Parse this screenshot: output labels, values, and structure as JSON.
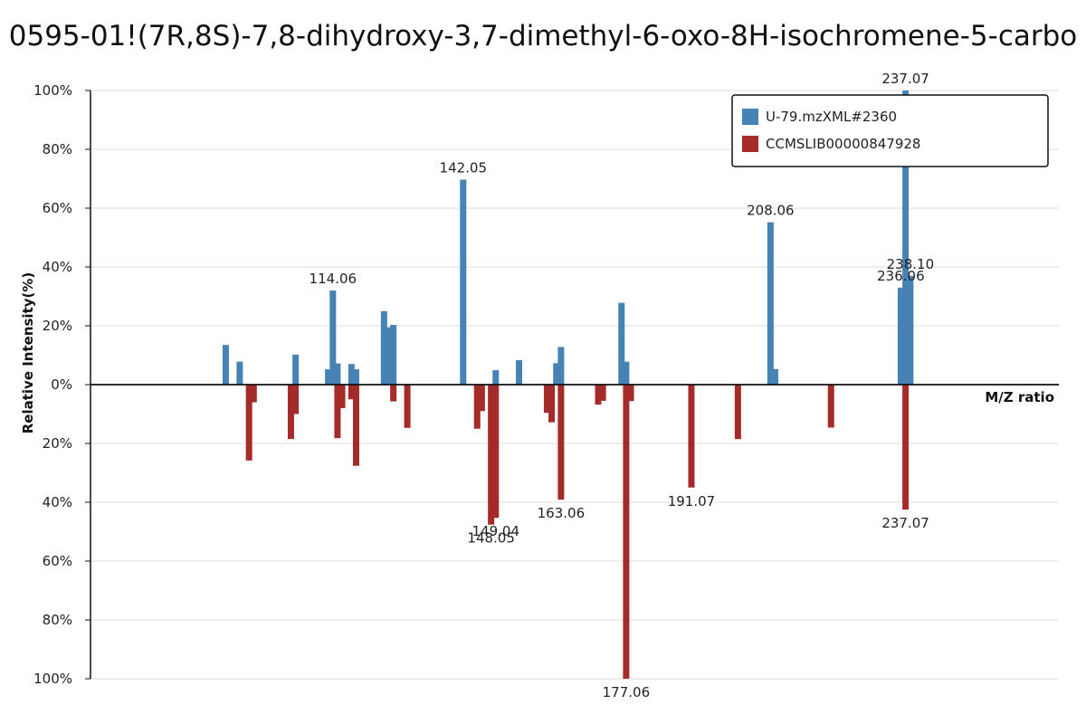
{
  "chart_data": {
    "type": "bar",
    "title": "0595-01!(7R,8S)-7,8-dihydroxy-3,7-dimethyl-6-oxo-8H-isochromene-5-carbo",
    "xlabel": "M/Z ratio",
    "ylabel": "Relative Intensity(%)",
    "legend_position": "top-right",
    "grid": true,
    "colors": {
      "top": "#4682b4",
      "bottom": "#a52a2a"
    },
    "yticks_top": [
      "100%",
      "80%",
      "60%",
      "40%",
      "20%",
      "0%"
    ],
    "yticks_bottom": [
      "20%",
      "40%",
      "60%",
      "80%",
      "100%"
    ],
    "xlim": [
      62,
      270
    ],
    "ylim": [
      -100,
      100
    ],
    "series": [
      {
        "name": "U-79.mzXML#2360",
        "direction": "up",
        "color": "#4682b4",
        "peaks": [
          {
            "mz": 91.05,
            "intensity": 13.5
          },
          {
            "mz": 94.05,
            "intensity": 7.8
          },
          {
            "mz": 106.06,
            "intensity": 10.2
          },
          {
            "mz": 113.05,
            "intensity": 5.2
          },
          {
            "mz": 114.06,
            "intensity": 32.0,
            "label": "114.06"
          },
          {
            "mz": 115.05,
            "intensity": 7.2
          },
          {
            "mz": 118.05,
            "intensity": 7.0
          },
          {
            "mz": 119.05,
            "intensity": 5.2
          },
          {
            "mz": 125.05,
            "intensity": 25.0
          },
          {
            "mz": 126.05,
            "intensity": 19.5
          },
          {
            "mz": 127.05,
            "intensity": 20.3
          },
          {
            "mz": 142.05,
            "intensity": 69.7,
            "label": "142.05"
          },
          {
            "mz": 149.04,
            "intensity": 4.9
          },
          {
            "mz": 154.05,
            "intensity": 8.3
          },
          {
            "mz": 162.06,
            "intensity": 7.3
          },
          {
            "mz": 163.06,
            "intensity": 12.8
          },
          {
            "mz": 176.06,
            "intensity": 27.8
          },
          {
            "mz": 177.06,
            "intensity": 7.8
          },
          {
            "mz": 208.06,
            "intensity": 55.2,
            "label": "208.06"
          },
          {
            "mz": 209.06,
            "intensity": 5.3
          },
          {
            "mz": 236.06,
            "intensity": 33.0,
            "label": "236.06"
          },
          {
            "mz": 237.07,
            "intensity": 100.0,
            "label": "237.07"
          },
          {
            "mz": 238.1,
            "intensity": 37.0,
            "label": "238.10"
          }
        ]
      },
      {
        "name": "CCMSLIB00000847928",
        "direction": "down",
        "color": "#a52a2a",
        "peaks": [
          {
            "mz": 96.05,
            "intensity": 25.8
          },
          {
            "mz": 97.05,
            "intensity": 6.0
          },
          {
            "mz": 105.05,
            "intensity": 18.5
          },
          {
            "mz": 106.05,
            "intensity": 10.0
          },
          {
            "mz": 115.05,
            "intensity": 18.2
          },
          {
            "mz": 116.05,
            "intensity": 8.0
          },
          {
            "mz": 118.05,
            "intensity": 5.0
          },
          {
            "mz": 119.05,
            "intensity": 27.6
          },
          {
            "mz": 127.05,
            "intensity": 5.7
          },
          {
            "mz": 130.05,
            "intensity": 14.7
          },
          {
            "mz": 145.05,
            "intensity": 15.0
          },
          {
            "mz": 146.05,
            "intensity": 9.0
          },
          {
            "mz": 148.05,
            "intensity": 47.6,
            "label": "148.05"
          },
          {
            "mz": 149.04,
            "intensity": 45.3,
            "label": "149.04"
          },
          {
            "mz": 160.06,
            "intensity": 9.6
          },
          {
            "mz": 161.06,
            "intensity": 12.8
          },
          {
            "mz": 163.06,
            "intensity": 39.1,
            "label": "163.06"
          },
          {
            "mz": 171.05,
            "intensity": 6.8
          },
          {
            "mz": 172.05,
            "intensity": 5.5
          },
          {
            "mz": 177.06,
            "intensity": 100.0,
            "label": "177.06"
          },
          {
            "mz": 178.06,
            "intensity": 5.6
          },
          {
            "mz": 191.07,
            "intensity": 35.0,
            "label": "191.07"
          },
          {
            "mz": 201.06,
            "intensity": 18.5
          },
          {
            "mz": 221.06,
            "intensity": 14.6
          },
          {
            "mz": 237.07,
            "intensity": 42.5,
            "label": "237.07"
          }
        ]
      }
    ]
  }
}
